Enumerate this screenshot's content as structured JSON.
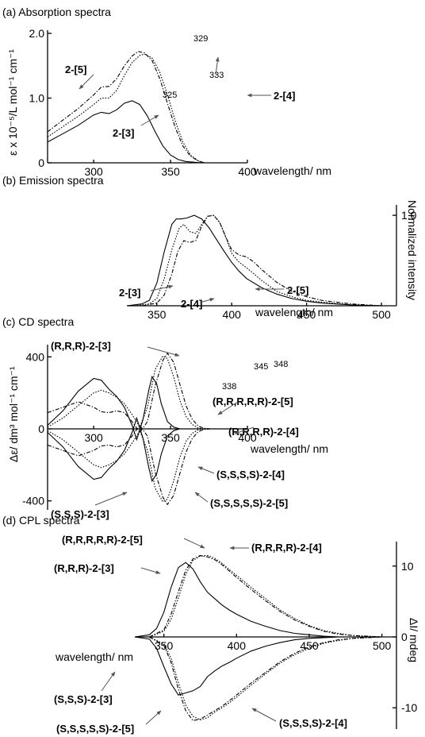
{
  "chart_data": [
    {
      "id": "a",
      "type": "line",
      "title": "(a) Absorption spectra",
      "xlabel": "wavelength/ nm",
      "ylabel": "ε x 10⁻⁵/L mol⁻¹ cm⁻¹",
      "xlim": [
        270,
        400
      ],
      "ylim": [
        0,
        2.0
      ],
      "xticks": [
        300,
        350,
        400
      ],
      "yticks": [
        {
          "v": 0,
          "label": "0"
        },
        {
          "v": 1.0,
          "label": "1.0"
        },
        {
          "v": 2.0,
          "label": "2.0"
        }
      ],
      "series": [
        {
          "name": "2-[3]",
          "style": "solid",
          "x": [
            270,
            280,
            290,
            300,
            305,
            310,
            315,
            320,
            325,
            330,
            335,
            340,
            345,
            350,
            355,
            360,
            365,
            370
          ],
          "y": [
            0.32,
            0.45,
            0.58,
            0.74,
            0.78,
            0.76,
            0.82,
            0.92,
            0.96,
            0.9,
            0.72,
            0.48,
            0.26,
            0.12,
            0.05,
            0.02,
            0.01,
            0
          ]
        },
        {
          "name": "2-[4]",
          "style": "dot",
          "x": [
            270,
            280,
            290,
            300,
            305,
            310,
            315,
            320,
            325,
            330,
            333,
            338,
            343,
            348,
            353,
            358,
            363,
            368,
            372
          ],
          "y": [
            0.4,
            0.56,
            0.72,
            0.9,
            1.0,
            1.0,
            1.12,
            1.35,
            1.55,
            1.66,
            1.68,
            1.62,
            1.4,
            1.05,
            0.65,
            0.32,
            0.12,
            0.03,
            0
          ]
        },
        {
          "name": "2-[5]",
          "style": "dashdot",
          "x": [
            270,
            280,
            290,
            300,
            305,
            310,
            315,
            320,
            325,
            329,
            333,
            338,
            343,
            348,
            353,
            358,
            363,
            368,
            372
          ],
          "y": [
            0.48,
            0.66,
            0.84,
            1.05,
            1.17,
            1.18,
            1.3,
            1.5,
            1.65,
            1.72,
            1.7,
            1.58,
            1.3,
            0.92,
            0.55,
            0.26,
            0.1,
            0.03,
            0
          ]
        }
      ],
      "peak_labels": [
        "329",
        "333",
        "325"
      ],
      "annotations": [
        "2-[5]",
        "2-[4]",
        "2-[3]"
      ]
    },
    {
      "id": "b",
      "type": "line",
      "title": "(b) Emission spectra",
      "xlabel": "wavelength/ nm",
      "ylabel": "Normalized intensity",
      "xlim": [
        330,
        510
      ],
      "ylim": [
        0,
        1.08
      ],
      "xticks": [
        350,
        400,
        450,
        500
      ],
      "yticks": [
        {
          "v": 1.0,
          "label": "1.0"
        }
      ],
      "series": [
        {
          "name": "2-[3]",
          "style": "solid",
          "x": [
            330,
            340,
            345,
            350,
            355,
            360,
            363,
            366,
            370,
            375,
            380,
            385,
            390,
            395,
            400,
            405,
            410,
            420,
            430,
            440,
            450,
            460,
            480,
            500
          ],
          "y": [
            0,
            0.02,
            0.06,
            0.25,
            0.6,
            0.9,
            0.96,
            0.96,
            0.97,
            1.0,
            0.96,
            0.86,
            0.73,
            0.6,
            0.48,
            0.38,
            0.3,
            0.2,
            0.13,
            0.08,
            0.05,
            0.03,
            0.01,
            0
          ]
        },
        {
          "name": "2-[4]",
          "style": "dot",
          "x": [
            335,
            345,
            350,
            355,
            360,
            365,
            368,
            372,
            376,
            380,
            384,
            388,
            392,
            396,
            400,
            405,
            410,
            420,
            430,
            440,
            450,
            460,
            480,
            500
          ],
          "y": [
            0,
            0.02,
            0.08,
            0.3,
            0.62,
            0.86,
            0.9,
            0.82,
            0.8,
            0.9,
            0.99,
            1.0,
            0.92,
            0.76,
            0.58,
            0.48,
            0.42,
            0.28,
            0.16,
            0.1,
            0.06,
            0.04,
            0.01,
            0
          ]
        },
        {
          "name": "2-[5]",
          "style": "dashdot",
          "x": [
            340,
            350,
            355,
            360,
            364,
            368,
            372,
            376,
            380,
            384,
            388,
            392,
            396,
            400,
            405,
            410,
            415,
            420,
            430,
            440,
            450,
            460,
            480,
            500
          ],
          "y": [
            0,
            0.03,
            0.12,
            0.35,
            0.6,
            0.72,
            0.7,
            0.72,
            0.88,
            0.99,
            1.0,
            0.92,
            0.76,
            0.62,
            0.56,
            0.54,
            0.48,
            0.4,
            0.26,
            0.16,
            0.1,
            0.06,
            0.02,
            0
          ]
        }
      ],
      "annotations": [
        "2-[3]",
        "2-[4]",
        "2-[5]"
      ]
    },
    {
      "id": "c",
      "type": "line",
      "title": "(c) CD spectra",
      "xlabel": "wavelength/ nm",
      "ylabel": "Δε/ dm³ mol⁻¹ cm⁻¹",
      "xlim": [
        270,
        400
      ],
      "ylim": [
        -450,
        450
      ],
      "xticks": [
        300,
        350,
        400
      ],
      "yticks": [
        {
          "v": 400,
          "label": "400"
        },
        {
          "v": 0,
          "label": "0"
        },
        {
          "v": -400,
          "label": "-400"
        }
      ],
      "series": [
        {
          "name": "(R,R,R)-2-[3]",
          "style": "solid",
          "x": [
            270,
            280,
            290,
            300,
            305,
            310,
            315,
            320,
            325,
            328,
            332,
            336,
            338,
            341,
            344,
            348,
            352,
            356,
            360,
            365,
            370
          ],
          "y": [
            20,
            100,
            210,
            280,
            270,
            220,
            180,
            120,
            20,
            -60,
            50,
            220,
            290,
            250,
            140,
            40,
            10,
            0,
            0,
            0,
            0
          ]
        },
        {
          "name": "(S,S,S)-2-[3]",
          "style": "solid",
          "x": [
            270,
            280,
            290,
            300,
            305,
            310,
            315,
            320,
            325,
            328,
            332,
            336,
            338,
            341,
            344,
            348,
            352,
            356,
            360,
            365,
            370
          ],
          "y": [
            -20,
            -100,
            -210,
            -280,
            -270,
            -220,
            -180,
            -120,
            -20,
            60,
            -50,
            -220,
            -290,
            -250,
            -140,
            -40,
            -10,
            0,
            0,
            0,
            0
          ]
        },
        {
          "name": "(R,R,R,R)-2-[4]",
          "style": "dot",
          "x": [
            270,
            280,
            290,
            300,
            305,
            310,
            315,
            320,
            325,
            330,
            335,
            340,
            345,
            348,
            352,
            356,
            360,
            364,
            368,
            372
          ],
          "y": [
            10,
            60,
            130,
            200,
            215,
            200,
            175,
            140,
            80,
            10,
            120,
            330,
            405,
            390,
            290,
            160,
            70,
            25,
            5,
            0
          ]
        },
        {
          "name": "(S,S,S,S)-2-[4]",
          "style": "dot",
          "x": [
            270,
            280,
            290,
            300,
            305,
            310,
            315,
            320,
            325,
            330,
            335,
            340,
            345,
            348,
            352,
            356,
            360,
            364,
            368,
            372
          ],
          "y": [
            -10,
            -60,
            -130,
            -200,
            -215,
            -200,
            -175,
            -140,
            -80,
            -10,
            -120,
            -330,
            -405,
            -390,
            -290,
            -160,
            -70,
            -25,
            -5,
            0
          ]
        },
        {
          "name": "(R,R,R,R,R)-2-[5]",
          "style": "dashdot",
          "x": [
            270,
            280,
            290,
            300,
            305,
            310,
            315,
            320,
            325,
            330,
            335,
            340,
            345,
            348,
            352,
            356,
            360,
            364,
            368,
            372,
            376
          ],
          "y": [
            90,
            120,
            150,
            120,
            95,
            90,
            100,
            90,
            40,
            -20,
            40,
            240,
            380,
            420,
            370,
            250,
            130,
            55,
            15,
            3,
            0
          ]
        },
        {
          "name": "(S,S,S,S,S)-2-[5]",
          "style": "dashdot",
          "x": [
            270,
            280,
            290,
            300,
            305,
            310,
            315,
            320,
            325,
            330,
            335,
            340,
            345,
            348,
            352,
            356,
            360,
            364,
            368,
            372,
            376
          ],
          "y": [
            -90,
            -120,
            -150,
            -120,
            -95,
            -90,
            -100,
            -90,
            -40,
            20,
            -40,
            -240,
            -380,
            -420,
            -370,
            -250,
            -130,
            -55,
            -15,
            -3,
            0
          ]
        }
      ],
      "peak_labels": [
        "345",
        "348",
        "338"
      ],
      "annotations": [
        "(R,R,R)-2-[3]",
        "(R,R,R,R,R)-2-[5]",
        "(R,R,R,R)-2-[4]",
        "(S,S,S,S)-2-[4]",
        "(S,S,S,S,S)-2-[5]",
        "(S,S,S)-2-[3]"
      ]
    },
    {
      "id": "d",
      "type": "line",
      "title": "(d) CPL spectra",
      "xlabel": "wavelength/ nm",
      "ylabel": "ΔI/ mdeg",
      "xlim": [
        330,
        510
      ],
      "ylim": [
        -13,
        13
      ],
      "xticks": [
        350,
        400,
        450,
        500
      ],
      "yticks": [
        {
          "v": 10,
          "label": "10"
        },
        {
          "v": 0,
          "label": "0"
        },
        {
          "v": -10,
          "label": "-10"
        }
      ],
      "series": [
        {
          "name": "(R,R,R)-2-[3]",
          "style": "solid",
          "x": [
            330,
            340,
            345,
            350,
            355,
            360,
            365,
            370,
            375,
            380,
            385,
            390,
            395,
            400,
            410,
            420,
            430,
            440,
            450,
            460,
            470,
            480
          ],
          "y": [
            0,
            0.3,
            1.2,
            3.5,
            7.0,
            9.8,
            10.5,
            9.6,
            7.8,
            6.3,
            5.4,
            4.5,
            3.8,
            3.2,
            2.2,
            1.5,
            0.9,
            0.5,
            0.3,
            0.1,
            0,
            0
          ]
        },
        {
          "name": "(S,S,S)-2-[3]",
          "style": "solid",
          "x": [
            330,
            340,
            345,
            350,
            355,
            360,
            365,
            370,
            375,
            380,
            385,
            390,
            395,
            400,
            410,
            420,
            430,
            440,
            450,
            460,
            470,
            480
          ],
          "y": [
            0,
            -0.3,
            -1.6,
            -4.2,
            -6.6,
            -8.2,
            -7.9,
            -7.6,
            -7.0,
            -5.6,
            -4.8,
            -4.1,
            -3.6,
            -3.0,
            -2.0,
            -1.3,
            -0.8,
            -0.4,
            -0.2,
            -0.1,
            0,
            0
          ]
        },
        {
          "name": "(R,R,R,R)-2-[4]",
          "style": "dot",
          "x": [
            340,
            350,
            355,
            360,
            365,
            370,
            375,
            380,
            385,
            390,
            395,
            400,
            410,
            420,
            430,
            440,
            450,
            460,
            470,
            480,
            490,
            500
          ],
          "y": [
            0,
            0.8,
            2.5,
            5.5,
            8.8,
            10.8,
            11.4,
            11.5,
            11.1,
            10.4,
            9.5,
            8.7,
            7.0,
            5.4,
            3.8,
            2.6,
            1.6,
            0.9,
            0.5,
            0.2,
            0.1,
            0
          ]
        },
        {
          "name": "(S,S,S,S)-2-[4]",
          "style": "dot",
          "x": [
            340,
            350,
            355,
            360,
            365,
            370,
            375,
            380,
            385,
            390,
            395,
            400,
            410,
            420,
            430,
            440,
            450,
            460,
            470,
            480,
            490,
            500
          ],
          "y": [
            0,
            -1.0,
            -3.0,
            -6.5,
            -9.6,
            -11.2,
            -11.7,
            -11.4,
            -10.6,
            -10.0,
            -9.3,
            -8.5,
            -6.8,
            -5.2,
            -3.7,
            -2.5,
            -1.6,
            -0.9,
            -0.5,
            -0.2,
            -0.1,
            0
          ]
        },
        {
          "name": "(R,R,R,R,R)-2-[5]",
          "style": "dashdot",
          "x": [
            340,
            350,
            355,
            360,
            365,
            370,
            375,
            380,
            385,
            390,
            395,
            400,
            410,
            420,
            430,
            440,
            450,
            460,
            470,
            480,
            490,
            500
          ],
          "y": [
            0,
            1.0,
            3.2,
            6.4,
            9.4,
            11.0,
            11.5,
            11.3,
            10.9,
            10.2,
            9.3,
            8.4,
            6.7,
            5.1,
            3.6,
            2.4,
            1.5,
            0.8,
            0.4,
            0.2,
            0.1,
            0
          ]
        },
        {
          "name": "(S,S,S,S,S)-2-[5]",
          "style": "dashdot",
          "x": [
            340,
            350,
            355,
            360,
            365,
            370,
            375,
            380,
            385,
            390,
            395,
            400,
            410,
            420,
            430,
            440,
            450,
            460,
            470,
            480,
            490,
            500
          ],
          "y": [
            0,
            -1.2,
            -3.6,
            -7.4,
            -10.4,
            -11.8,
            -11.6,
            -11.0,
            -10.4,
            -9.8,
            -9.0,
            -8.2,
            -6.5,
            -5.0,
            -3.5,
            -2.3,
            -1.4,
            -0.8,
            -0.4,
            -0.2,
            -0.1,
            0
          ]
        }
      ],
      "annotations": [
        "(R,R,R,R,R)-2-[5]",
        "(R,R,R,R)-2-[4]",
        "(R,R,R)-2-[3]",
        "(S,S,S)-2-[3]",
        "(S,S,S,S,S)-2-[5]",
        "(S,S,S,S)-2-[4]"
      ]
    }
  ]
}
